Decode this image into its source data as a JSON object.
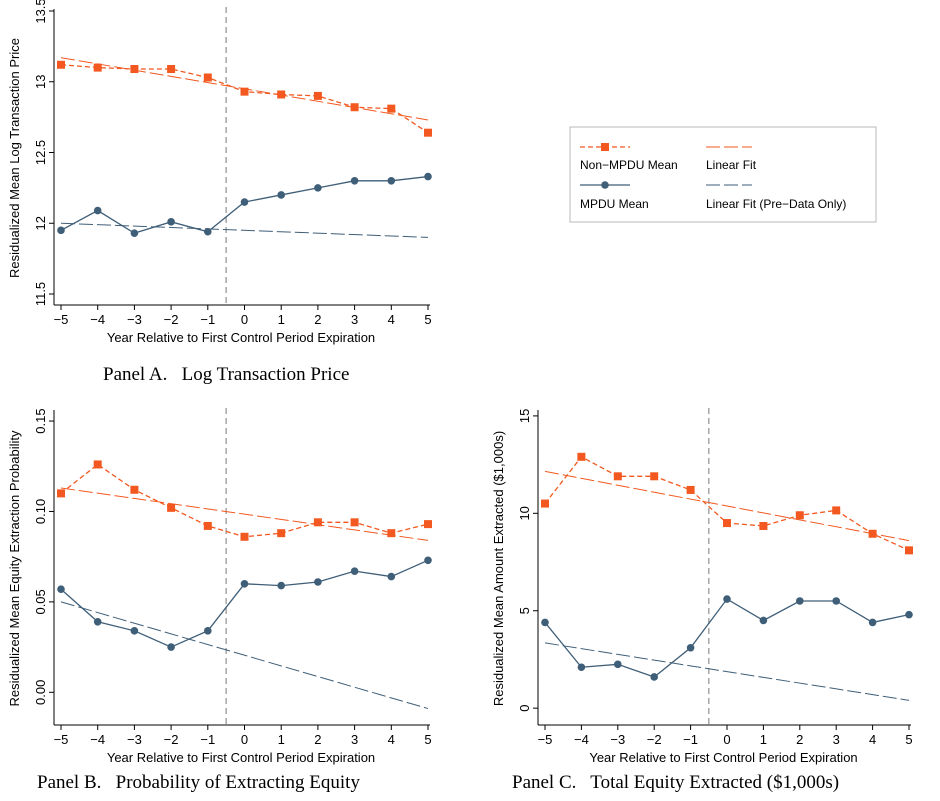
{
  "colors": {
    "non_mpdu": "#f2581f",
    "mpdu": "#3f5e78",
    "vline": "#a6a6a6",
    "axis": "#000000"
  },
  "legend": {
    "items": [
      {
        "key": "non_mpdu_mean",
        "label": "Non−MPDU Mean",
        "style": "dashed-square",
        "color": "#f2581f"
      },
      {
        "key": "linear_fit",
        "label": "Linear Fit",
        "style": "long-dash",
        "color": "#f2581f"
      },
      {
        "key": "mpdu_mean",
        "label": "MPDU Mean",
        "style": "solid-circle",
        "color": "#3f5e78"
      },
      {
        "key": "linear_fit_pre",
        "label": "Linear Fit (Pre−Data Only)",
        "style": "long-dash",
        "color": "#3f5e78"
      }
    ]
  },
  "chart_data": [
    {
      "type": "line",
      "panel_caption": "Panel A.   Log Transaction Price",
      "xlabel": "Year Relative to First Control Period Expiration",
      "ylabel": "Residualized Mean Log Transaction Price",
      "x": [
        -5,
        -4,
        -3,
        -2,
        -1,
        0,
        1,
        2,
        3,
        4,
        5
      ],
      "xticks": [
        "−5",
        "−4",
        "−3",
        "−2",
        "−1",
        "0",
        "1",
        "2",
        "3",
        "4",
        "5"
      ],
      "yticks": [
        11.5,
        12,
        12.5,
        13,
        13.5
      ],
      "ytick_labels": [
        "11.5",
        "12",
        "12.5",
        "13",
        "13.5"
      ],
      "ylim": [
        11.5,
        13.5
      ],
      "vline_x": -0.5,
      "series": [
        {
          "name": "Non−MPDU Mean",
          "values": [
            13.12,
            13.1,
            13.09,
            13.09,
            13.03,
            12.93,
            12.91,
            12.9,
            12.82,
            12.81,
            12.64
          ]
        },
        {
          "name": "MPDU Mean",
          "values": [
            11.95,
            12.09,
            11.93,
            12.01,
            11.94,
            12.15,
            12.2,
            12.25,
            12.3,
            12.3,
            12.33
          ]
        }
      ],
      "fits": [
        {
          "series": "Non−MPDU Mean",
          "x": [
            -5,
            5
          ],
          "y": [
            13.17,
            12.73
          ]
        },
        {
          "series": "MPDU Mean",
          "x": [
            -5,
            5
          ],
          "y": [
            12.0,
            11.9
          ]
        }
      ]
    },
    {
      "type": "line",
      "panel_caption": "Panel B.   Probability of Extracting Equity",
      "xlabel": "Year Relative to First Control Period Expiration",
      "ylabel": "Residualized Mean Equity Extraction Probability",
      "x": [
        -5,
        -4,
        -3,
        -2,
        -1,
        0,
        1,
        2,
        3,
        4,
        5
      ],
      "xticks": [
        "−5",
        "−4",
        "−3",
        "−2",
        "−1",
        "0",
        "1",
        "2",
        "3",
        "4",
        "5"
      ],
      "yticks": [
        0,
        0.05,
        0.1,
        0.15
      ],
      "ytick_labels": [
        "0.00",
        "0.05",
        "0.10",
        "0.15"
      ],
      "ylim": [
        -0.012,
        0.155
      ],
      "vline_x": -0.5,
      "series": [
        {
          "name": "Non−MPDU Mean",
          "values": [
            0.11,
            0.126,
            0.112,
            0.102,
            0.092,
            0.086,
            0.088,
            0.094,
            0.094,
            0.088,
            0.093
          ]
        },
        {
          "name": "MPDU Mean",
          "values": [
            0.057,
            0.039,
            0.034,
            0.025,
            0.034,
            0.06,
            0.059,
            0.061,
            0.067,
            0.064,
            0.073
          ]
        }
      ],
      "fits": [
        {
          "series": "Non−MPDU Mean",
          "x": [
            -5,
            5
          ],
          "y": [
            0.113,
            0.084
          ]
        },
        {
          "series": "MPDU Mean",
          "x": [
            -5,
            5
          ],
          "y": [
            0.05,
            -0.009
          ]
        }
      ]
    },
    {
      "type": "line",
      "panel_caption": "Panel C.   Total Equity Extracted ($1,000s)",
      "xlabel": "Year Relative to First Control Period Expiration",
      "ylabel": "Residualized Mean Amount Extracted ($1,000s)",
      "x": [
        -5,
        -4,
        -3,
        -2,
        -1,
        0,
        1,
        2,
        3,
        4,
        5
      ],
      "xticks": [
        "−5",
        "−4",
        "−3",
        "−2",
        "−1",
        "0",
        "1",
        "2",
        "3",
        "4",
        "5"
      ],
      "yticks": [
        0,
        5,
        10,
        15
      ],
      "ytick_labels": [
        "0",
        "5",
        "10",
        "15"
      ],
      "ylim": [
        -0.3,
        15.2
      ],
      "vline_x": -0.5,
      "series": [
        {
          "name": "Non−MPDU Mean",
          "values": [
            10.5,
            12.9,
            11.9,
            11.9,
            11.2,
            9.5,
            9.35,
            9.9,
            10.15,
            8.95,
            8.1
          ]
        },
        {
          "name": "MPDU Mean",
          "values": [
            4.4,
            2.1,
            2.25,
            1.6,
            3.1,
            5.6,
            4.5,
            5.5,
            5.5,
            4.4,
            4.8
          ]
        }
      ],
      "fits": [
        {
          "series": "Non−MPDU Mean",
          "x": [
            -5,
            5
          ],
          "y": [
            12.15,
            8.6
          ]
        },
        {
          "series": "MPDU Mean",
          "x": [
            -5,
            5
          ],
          "y": [
            3.35,
            0.4
          ]
        }
      ]
    }
  ]
}
